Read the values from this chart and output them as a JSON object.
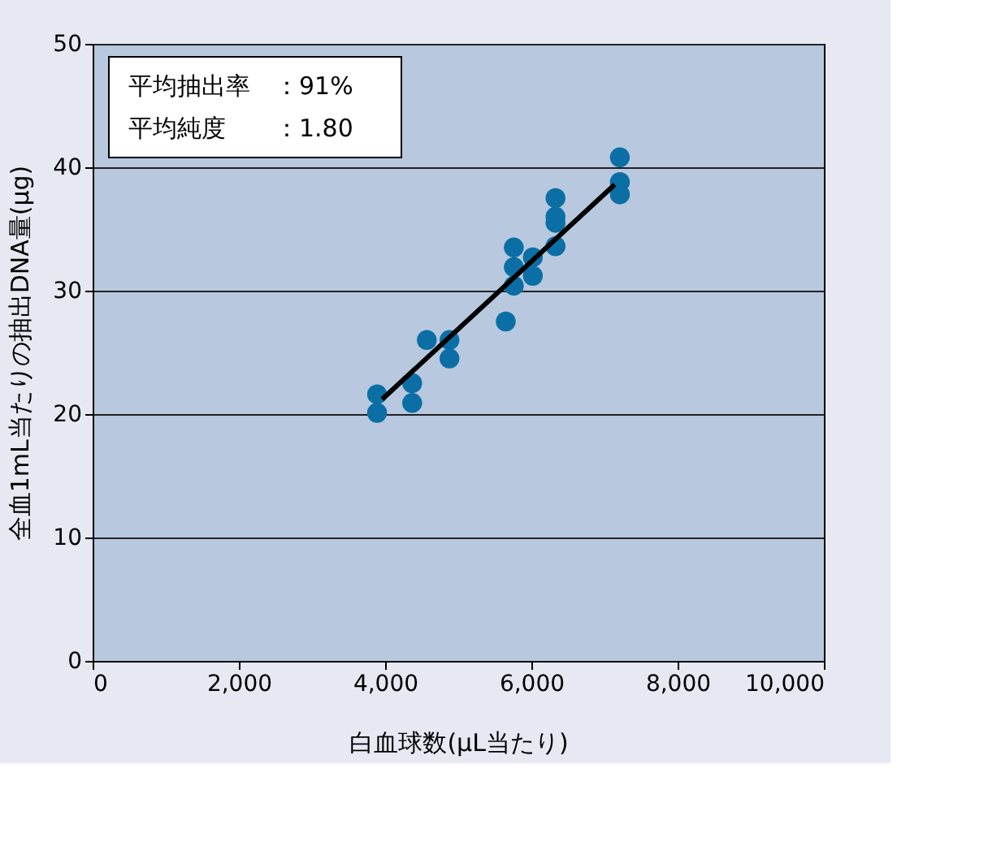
{
  "chart_data": {
    "type": "scatter",
    "xlabel": "白血球数(μL当たり)",
    "ylabel": "全血1mL当たりの抽出DNA量(μg)",
    "annotations": [
      "平均抽出率　：91%",
      "平均純度　　：1.80"
    ],
    "series": [
      {
        "color": "#0b6fa5",
        "x": [
          3890,
          3890,
          4370,
          4370,
          4570,
          4880,
          4880,
          5650,
          5760,
          5760,
          5760,
          6020,
          6020,
          6330,
          6330,
          6330,
          6330,
          7210,
          7210,
          7210
        ],
        "values": [
          21.6,
          20.1,
          22.5,
          20.9,
          26.0,
          26.0,
          24.5,
          27.5,
          33.5,
          31.9,
          30.4,
          32.7,
          31.2,
          37.5,
          36.0,
          35.5,
          33.6,
          40.8,
          38.8,
          37.8
        ]
      },
      {
        "type": "line",
        "marker": "none",
        "color": "#000000",
        "x": [
          3960,
          7140
        ],
        "values": [
          21.2,
          38.6
        ]
      }
    ],
    "xlim": [
      0,
      10000
    ],
    "xticks": [
      0,
      {
        "value": 2000,
        "label": "2,000"
      },
      {
        "value": 4000,
        "label": "4,000"
      },
      {
        "value": 6000,
        "label": "6,000"
      },
      {
        "value": 8000,
        "label": "8,000"
      },
      {
        "value": 10000,
        "label": "10,000"
      }
    ],
    "ylim": [
      0,
      50
    ],
    "yticks": [
      0,
      10,
      20,
      30,
      40,
      50
    ],
    "grid": "y",
    "marker": "circle"
  }
}
